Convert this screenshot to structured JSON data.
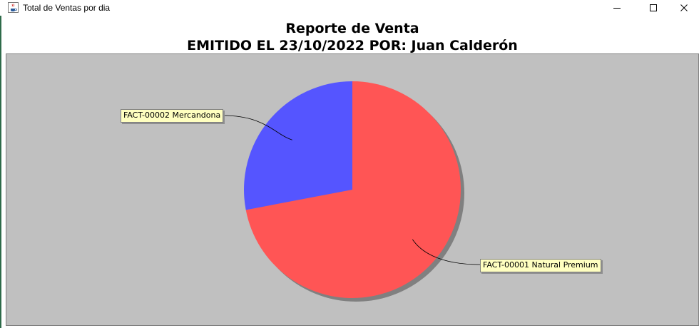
{
  "window": {
    "title": "Total de Ventas por dia",
    "icon": "java-cup-icon",
    "controls": [
      "minimize-icon",
      "maximize-icon",
      "close-icon"
    ]
  },
  "chart_data": {
    "type": "pie",
    "title": "Reporte de Venta",
    "subtitle": "EMITIDO EL 23/10/2022 POR: Juan Calderón",
    "categories": [
      "FACT-00002 Mercandona",
      "FACT-00001 Natural Premium"
    ],
    "values": [
      28,
      72
    ],
    "colors": [
      "#5555ff",
      "#ff5555"
    ],
    "background": "#c0c0c0",
    "label_background": "#ffffc0",
    "legend": "none",
    "labels": "callouts"
  }
}
